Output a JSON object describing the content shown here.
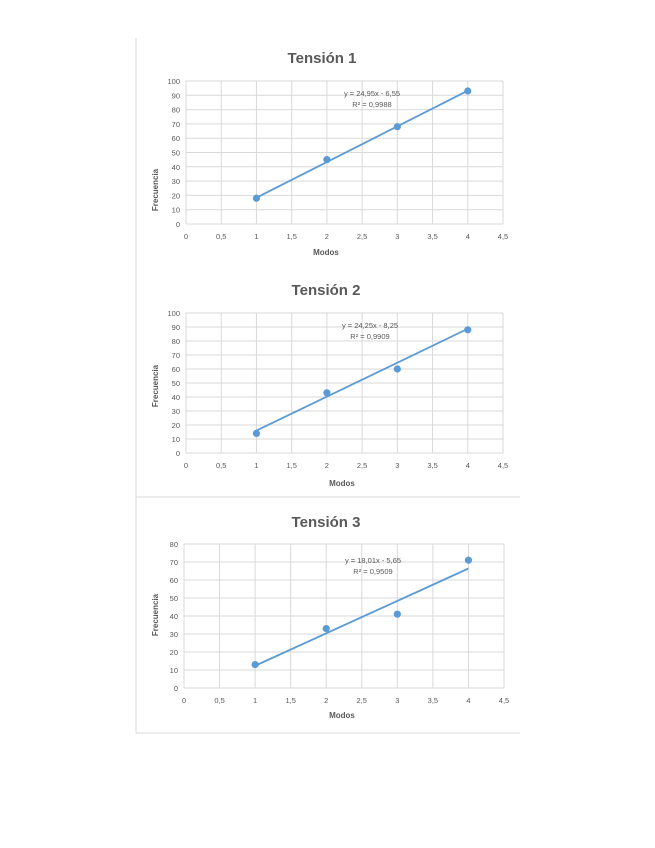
{
  "chart_data": [
    {
      "type": "scatter",
      "title": "Tensión 1",
      "xlabel": "Modos",
      "ylabel": "Frecuencia",
      "xlim": [
        0,
        4.5
      ],
      "ylim": [
        0,
        100
      ],
      "xticks": [
        "0",
        "0,5",
        "1",
        "1,5",
        "2",
        "2,5",
        "3",
        "3,5",
        "4",
        "4,5"
      ],
      "yticks": [
        "0",
        "10",
        "20",
        "30",
        "40",
        "50",
        "60",
        "70",
        "80",
        "90",
        "100"
      ],
      "series": [
        {
          "x": [
            1,
            2,
            3,
            4
          ],
          "y": [
            18,
            45,
            68,
            93
          ]
        }
      ],
      "trendline": {
        "type": "linear",
        "slope": 24.95,
        "intercept": -6.55
      },
      "equation": "y = 24,95x - 6,55",
      "r2": "R² = 0,9988",
      "grid": true,
      "color": "#5b9bd5"
    },
    {
      "type": "scatter",
      "title": "Tensión 2",
      "xlabel": "Modos",
      "ylabel": "Frecuencia",
      "xlim": [
        0,
        4.5
      ],
      "ylim": [
        0,
        100
      ],
      "xticks": [
        "0",
        "0,5",
        "1",
        "1,5",
        "2",
        "2,5",
        "3",
        "3,5",
        "4",
        "4,5"
      ],
      "yticks": [
        "0",
        "10",
        "20",
        "30",
        "40",
        "50",
        "60",
        "70",
        "80",
        "90",
        "100"
      ],
      "series": [
        {
          "x": [
            1,
            2,
            3,
            4
          ],
          "y": [
            14,
            43,
            60,
            88
          ]
        }
      ],
      "trendline": {
        "type": "linear",
        "slope": 24.25,
        "intercept": -8.25
      },
      "equation": "y = 24,25x - 8,25",
      "r2": "R² = 0,9909",
      "grid": true,
      "color": "#5b9bd5"
    },
    {
      "type": "scatter",
      "title": "Tensión 3",
      "xlabel": "Modos",
      "ylabel": "Frecuencia",
      "xlim": [
        0,
        4.5
      ],
      "ylim": [
        0,
        80
      ],
      "xticks": [
        "0",
        "0,5",
        "1",
        "1,5",
        "2",
        "2,5",
        "3",
        "3,5",
        "4",
        "4,5"
      ],
      "yticks": [
        "0",
        "10",
        "20",
        "30",
        "40",
        "50",
        "60",
        "70",
        "80"
      ],
      "series": [
        {
          "x": [
            1,
            2,
            3,
            4
          ],
          "y": [
            13,
            33,
            41,
            71
          ]
        }
      ],
      "trendline": {
        "type": "linear",
        "slope": 18.01,
        "intercept": -5.65
      },
      "equation": "y = 18,01x - 5,65",
      "r2": "R² = 0,9509",
      "grid": true,
      "color": "#5b9bd5"
    }
  ]
}
